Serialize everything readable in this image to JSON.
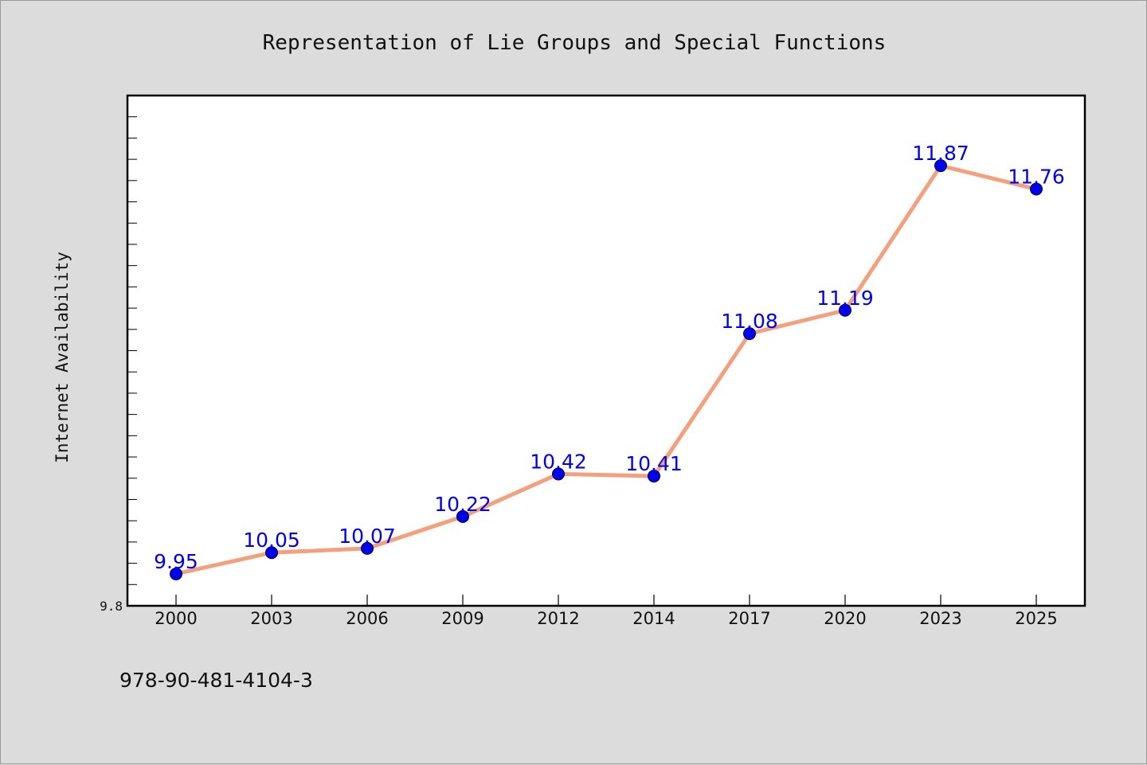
{
  "chart_data": {
    "type": "line",
    "title": "Representation of Lie Groups and Special Functions",
    "ylabel": "Internet Availability",
    "xlabel": "",
    "categories": [
      "2000",
      "2003",
      "2006",
      "2009",
      "2012",
      "2014",
      "2017",
      "2020",
      "2023",
      "2025"
    ],
    "series": [
      {
        "values": [
          9.95,
          10.05,
          10.07,
          10.22,
          10.42,
          10.41,
          11.08,
          11.19,
          11.87,
          11.76
        ]
      }
    ],
    "ylim": [
      9.8,
      12.2
    ],
    "yticks": [
      9.8
    ],
    "grid": false,
    "line_color": "#f4a07e",
    "marker_color": "#0000ee",
    "label_color": "#0000ee"
  },
  "footer": {
    "isbn": "978-90-481-4104-3"
  }
}
